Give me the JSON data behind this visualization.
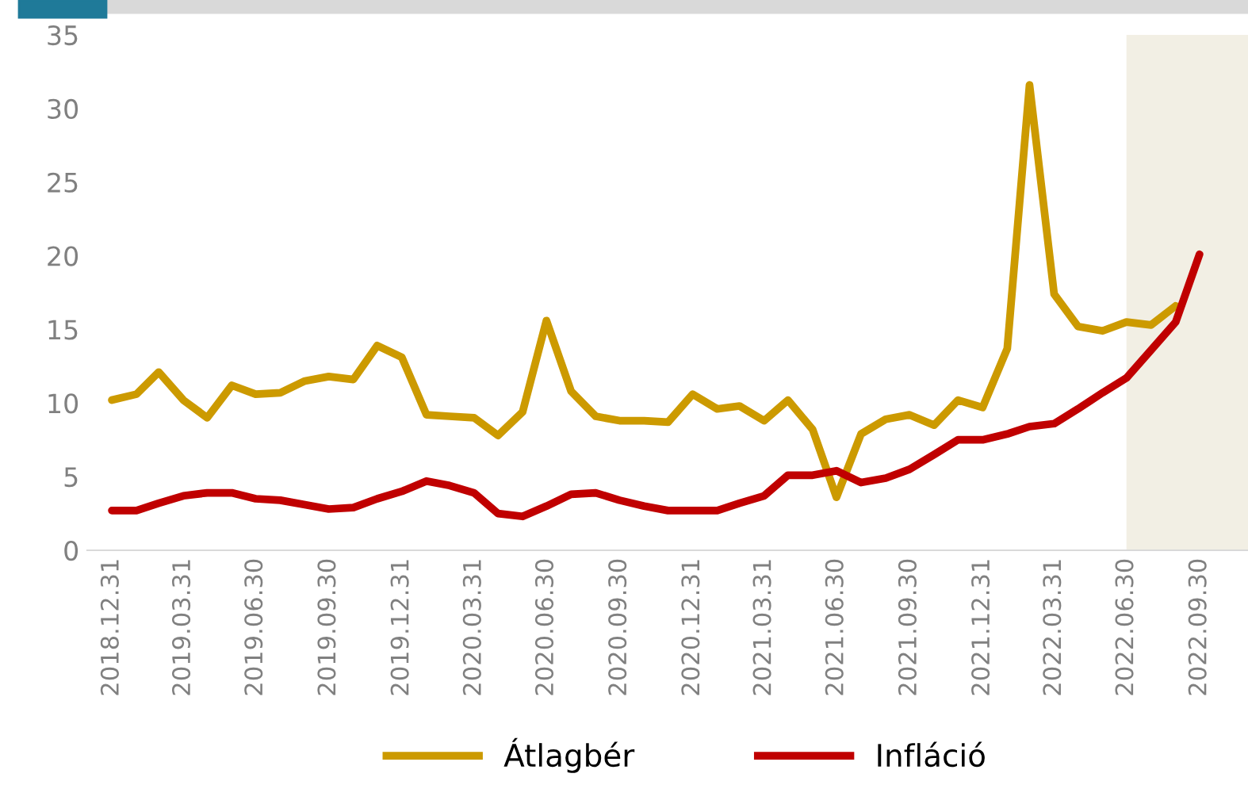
{
  "chart_data": {
    "type": "line",
    "x": [
      "2018-12-31",
      "2019-01-31",
      "2019-02-28",
      "2019-03-31",
      "2019-04-30",
      "2019-05-31",
      "2019-06-30",
      "2019-07-31",
      "2019-08-31",
      "2019-09-30",
      "2019-10-31",
      "2019-11-30",
      "2019-12-31",
      "2020-01-31",
      "2020-02-29",
      "2020-03-31",
      "2020-04-30",
      "2020-05-31",
      "2020-06-30",
      "2020-07-31",
      "2020-08-31",
      "2020-09-30",
      "2020-10-31",
      "2020-11-30",
      "2020-12-31",
      "2021-01-31",
      "2021-02-28",
      "2021-03-31",
      "2021-04-30",
      "2021-05-31",
      "2021-06-30",
      "2021-07-31",
      "2021-08-31",
      "2021-09-30",
      "2021-10-31",
      "2021-11-30",
      "2021-12-31",
      "2022-01-31",
      "2022-02-28",
      "2022-03-31",
      "2022-04-30",
      "2022-05-31",
      "2022-06-30",
      "2022-07-31",
      "2022-08-31",
      "2022-09-30"
    ],
    "series": [
      {
        "name": "Átlagbér",
        "color": "#cc9a00",
        "values": [
          10.2,
          10.6,
          12.1,
          10.2,
          9.0,
          11.2,
          10.6,
          10.7,
          11.5,
          11.8,
          11.6,
          13.9,
          13.1,
          9.2,
          9.1,
          9.0,
          7.8,
          9.4,
          15.6,
          10.8,
          9.1,
          8.8,
          8.8,
          8.7,
          10.6,
          9.6,
          9.8,
          8.8,
          10.2,
          8.2,
          3.6,
          7.9,
          8.9,
          9.2,
          8.5,
          10.2,
          9.7,
          13.7,
          31.6,
          17.4,
          15.2,
          14.9,
          15.5,
          15.3,
          16.6,
          null
        ]
      },
      {
        "name": "Infláció",
        "color": "#c00000",
        "values": [
          2.7,
          2.7,
          3.2,
          3.7,
          3.9,
          3.9,
          3.5,
          3.4,
          3.1,
          2.8,
          2.9,
          3.5,
          4.0,
          4.7,
          4.4,
          3.9,
          2.5,
          2.3,
          3.0,
          3.8,
          3.9,
          3.4,
          3.0,
          2.7,
          2.7,
          2.7,
          3.2,
          3.7,
          5.1,
          5.1,
          5.4,
          4.6,
          4.9,
          5.5,
          6.5,
          7.5,
          7.5,
          7.9,
          8.4,
          8.6,
          9.6,
          10.7,
          11.7,
          13.6,
          15.5,
          20.1
        ]
      }
    ],
    "xticks": [
      {
        "value": "2018-12-31",
        "label": "2018.12.31"
      },
      {
        "value": "2019-03-31",
        "label": "2019.03.31"
      },
      {
        "value": "2019-06-30",
        "label": "2019.06.30"
      },
      {
        "value": "2019-09-30",
        "label": "2019.09.30"
      },
      {
        "value": "2019-12-31",
        "label": "2019.12.31"
      },
      {
        "value": "2020-03-31",
        "label": "2020.03.31"
      },
      {
        "value": "2020-06-30",
        "label": "2020.06.30"
      },
      {
        "value": "2020-09-30",
        "label": "2020.09.30"
      },
      {
        "value": "2020-12-31",
        "label": "2020.12.31"
      },
      {
        "value": "2021-03-31",
        "label": "2021.03.31"
      },
      {
        "value": "2021-06-30",
        "label": "2021.06.30"
      },
      {
        "value": "2021-09-30",
        "label": "2021.09.30"
      },
      {
        "value": "2021-12-31",
        "label": "2021.12.31"
      },
      {
        "value": "2022-03-31",
        "label": "2022.03.31"
      },
      {
        "value": "2022-06-30",
        "label": "2022.06.30"
      },
      {
        "value": "2022-09-30",
        "label": "2022.09.30"
      }
    ],
    "xlim": [
      "2018-11-30",
      "2022-11-30"
    ],
    "ylim": [
      0,
      35
    ],
    "yticks": [
      0,
      5,
      10,
      15,
      20,
      25,
      30,
      35
    ],
    "bands": [
      {
        "axis": "x",
        "from": "2022-06-30",
        "to": "2022-11-30",
        "color": "#f2efe4"
      }
    ],
    "legend": "bottom",
    "grid": false,
    "marker": "none",
    "line_style": "solid"
  }
}
